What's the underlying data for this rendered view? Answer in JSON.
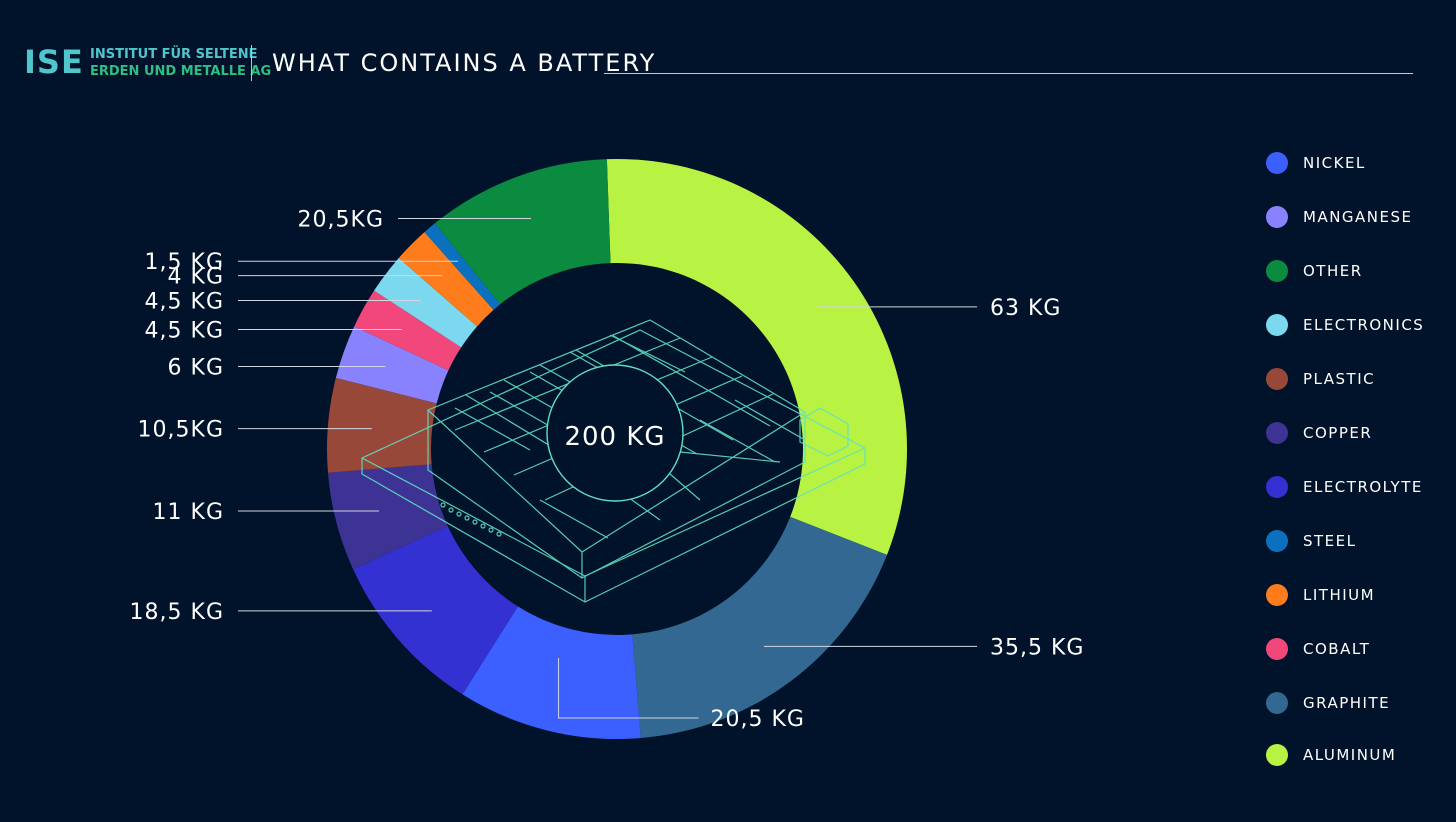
{
  "header": {
    "logo_mark": "ISE",
    "logo_line1": "INSTITUT FÜR SELTENE",
    "logo_line2": "ERDEN UND METALLE AG",
    "title": "WHAT CONTAINS A BATTERY"
  },
  "chart_data": {
    "type": "pie",
    "donut": true,
    "center_label": "200 KG",
    "total": 200,
    "unit": "KG",
    "slices": [
      {
        "name": "ALUMINUM",
        "value": 63,
        "label": "63 KG",
        "color": "#b8f243"
      },
      {
        "name": "GRAPHITE",
        "value": 35.5,
        "label": "35,5 KG",
        "color": "#326891"
      },
      {
        "name": "NICKEL",
        "value": 20.5,
        "label": "20,5 KG",
        "color": "#3c60ff"
      },
      {
        "name": "ELECTROLYTE",
        "value": 18.5,
        "label": "18,5 KG",
        "color": "#3431d3"
      },
      {
        "name": "COPPER",
        "value": 11,
        "label": "11 KG",
        "color": "#3c3394"
      },
      {
        "name": "PLASTIC",
        "value": 10.5,
        "label": "10,5KG",
        "color": "#974839"
      },
      {
        "name": "MANGANESE",
        "value": 6,
        "label": "6 KG",
        "color": "#8882ff"
      },
      {
        "name": "COBALT",
        "value": 4.5,
        "label": "4,5 KG",
        "color": "#f2477b"
      },
      {
        "name": "ELECTRONICS",
        "value": 4.5,
        "label": "4,5 KG",
        "color": "#7bd8ef"
      },
      {
        "name": "LITHIUM",
        "value": 4,
        "label": "4 KG",
        "color": "#fe7c1c"
      },
      {
        "name": "STEEL",
        "value": 1.5,
        "label": "1,5 KG",
        "color": "#0b71be"
      },
      {
        "name": "OTHER",
        "value": 20.5,
        "label": "20,5KG",
        "color": "#0b8b3f"
      }
    ],
    "legend": [
      {
        "name": "NICKEL",
        "color": "#3c60ff"
      },
      {
        "name": "MANGANESE",
        "color": "#8882ff"
      },
      {
        "name": "OTHER",
        "color": "#0b8b3f"
      },
      {
        "name": "ELECTRONICS",
        "color": "#7bd8ef"
      },
      {
        "name": "PLASTIC",
        "color": "#974839"
      },
      {
        "name": "COPPER",
        "color": "#3c3394"
      },
      {
        "name": "ELECTROLYTE",
        "color": "#3431d3"
      },
      {
        "name": "STEEL",
        "color": "#0b71be"
      },
      {
        "name": "LITHIUM",
        "color": "#fe7c1c"
      },
      {
        "name": "COBALT",
        "color": "#f2477b"
      },
      {
        "name": "GRAPHITE",
        "color": "#326891"
      },
      {
        "name": "ALUMINUM",
        "color": "#b8f243"
      }
    ],
    "legend_position": "right"
  }
}
